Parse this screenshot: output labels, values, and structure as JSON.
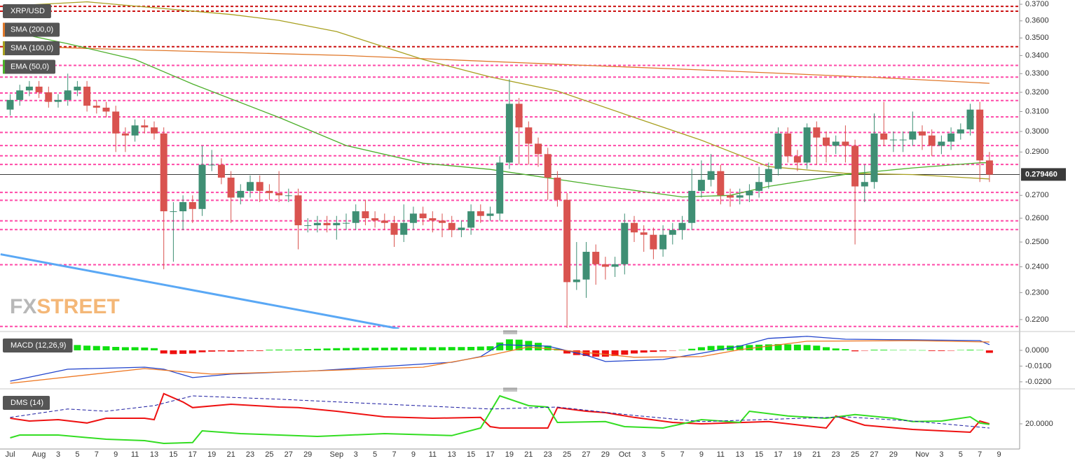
{
  "chart_data": [
    {
      "type": "candlestick",
      "title": "XRP/USD",
      "log_scale": true,
      "ylim": [
        0.2167,
        0.3726
      ],
      "yticks": [
        {
          "value": 0.37,
          "label": "0.3700"
        },
        {
          "value": 0.36,
          "label": "0.3600"
        },
        {
          "value": 0.35,
          "label": "0.3500"
        },
        {
          "value": 0.34,
          "label": "0.3400"
        },
        {
          "value": 0.33,
          "label": "0.3300"
        },
        {
          "value": 0.32,
          "label": "0.3200"
        },
        {
          "value": 0.31,
          "label": "0.3100"
        },
        {
          "value": 0.3,
          "label": "0.3000"
        },
        {
          "value": 0.29,
          "label": "0.2900"
        },
        {
          "value": 0.27,
          "label": "0.2700"
        },
        {
          "value": 0.26,
          "label": "0.2600"
        },
        {
          "value": 0.25,
          "label": "0.2500"
        },
        {
          "value": 0.24,
          "label": "0.2400"
        },
        {
          "value": 0.23,
          "label": "0.2300"
        },
        {
          "value": 0.22,
          "label": "0.2200"
        }
      ],
      "categories": [
        "Jul",
        null,
        null,
        "Aug",
        null,
        "3",
        null,
        "5",
        null,
        "7",
        null,
        "9",
        null,
        "11",
        null,
        "13",
        null,
        "15",
        null,
        "17",
        null,
        "19",
        null,
        "21",
        null,
        "23",
        null,
        "25",
        null,
        "27",
        null,
        "29",
        null,
        null,
        "Sep",
        null,
        "3",
        null,
        "5",
        null,
        "7",
        null,
        "9",
        null,
        "11",
        null,
        "13",
        null,
        "15",
        null,
        "17",
        null,
        "19",
        null,
        "21",
        null,
        "23",
        null,
        "25",
        null,
        "27",
        null,
        "29",
        null,
        "Oct",
        null,
        "3",
        null,
        "5",
        null,
        "7",
        null,
        "9",
        null,
        "11",
        null,
        "13",
        null,
        "15",
        null,
        "17",
        null,
        "19",
        null,
        "21",
        null,
        "23",
        null,
        "25",
        null,
        "27",
        null,
        "29",
        null,
        null,
        "Nov",
        null,
        "3",
        null,
        "5",
        null,
        "7",
        null,
        "9"
      ],
      "up_color": "#3f8f74",
      "down_color": "#d9534f",
      "open": [
        0.311,
        0.316,
        0.321,
        0.323,
        0.32,
        0.315,
        0.316,
        0.321,
        0.323,
        0.313,
        0.312,
        0.31,
        0.299,
        0.298,
        0.303,
        0.302,
        0.299,
        0.263,
        0.263,
        0.267,
        0.264,
        0.284,
        0.284,
        0.278,
        0.269,
        0.272,
        0.276,
        0.272,
        0.271,
        0.27,
        0.27,
        0.257,
        0.257,
        0.258,
        0.257,
        0.258,
        0.258,
        0.263,
        0.26,
        0.259,
        0.258,
        0.253,
        0.258,
        0.262,
        0.26,
        0.259,
        0.258,
        0.255,
        0.256,
        0.263,
        0.261,
        0.262,
        0.285,
        0.314,
        0.302,
        0.294,
        0.289,
        0.278,
        0.268,
        0.234,
        0.235,
        0.246,
        0.241,
        0.24,
        0.241,
        0.258,
        0.254,
        0.253,
        0.247,
        0.253,
        0.255,
        0.258,
        0.272,
        0.277,
        0.281,
        0.27,
        0.269,
        0.27,
        0.272,
        0.276,
        0.282,
        0.299,
        0.288,
        0.285,
        0.302,
        0.297,
        0.293,
        0.295,
        0.293,
        0.274,
        0.276,
        0.299,
        0.296,
        0.296,
        0.296,
        0.3,
        0.298,
        0.293,
        0.295,
        0.299,
        0.301,
        0.311,
        0.286,
        null
      ],
      "high": [
        0.319,
        0.324,
        0.326,
        0.326,
        0.323,
        0.319,
        0.33,
        0.326,
        0.326,
        0.316,
        0.315,
        0.313,
        0.302,
        0.306,
        0.306,
        0.305,
        0.302,
        0.267,
        0.27,
        0.27,
        0.293,
        0.291,
        0.287,
        0.281,
        0.275,
        0.279,
        0.279,
        0.275,
        0.281,
        0.273,
        0.273,
        0.26,
        0.261,
        0.261,
        0.261,
        0.262,
        0.266,
        0.268,
        0.263,
        0.262,
        0.261,
        0.266,
        0.265,
        0.265,
        0.263,
        0.262,
        0.261,
        0.259,
        0.266,
        0.266,
        0.265,
        0.288,
        0.327,
        0.317,
        0.305,
        0.297,
        0.292,
        0.281,
        0.271,
        0.25,
        0.25,
        0.249,
        0.244,
        0.244,
        0.262,
        0.261,
        0.257,
        0.256,
        0.257,
        0.258,
        0.261,
        0.282,
        0.286,
        0.289,
        0.284,
        0.273,
        0.273,
        0.275,
        0.283,
        0.285,
        0.302,
        0.302,
        0.291,
        0.304,
        0.305,
        0.3,
        0.298,
        0.303,
        0.296,
        0.284,
        0.309,
        0.315,
        0.3,
        0.3,
        0.31,
        0.303,
        0.301,
        0.298,
        0.302,
        0.304,
        0.314,
        0.315,
        0.29,
        null
      ],
      "low": [
        0.308,
        0.313,
        0.318,
        0.317,
        0.312,
        0.312,
        0.313,
        0.318,
        0.31,
        0.309,
        0.307,
        0.29,
        0.29,
        0.295,
        0.299,
        0.296,
        0.239,
        0.242,
        0.255,
        0.258,
        0.261,
        0.281,
        0.275,
        0.258,
        0.266,
        0.269,
        0.267,
        0.268,
        0.267,
        0.267,
        0.247,
        0.254,
        0.254,
        0.254,
        0.251,
        0.255,
        0.255,
        0.257,
        0.256,
        0.255,
        0.248,
        0.25,
        0.255,
        0.257,
        0.254,
        0.252,
        0.252,
        0.252,
        0.253,
        0.258,
        0.259,
        0.259,
        0.282,
        0.284,
        0.284,
        0.283,
        0.268,
        0.265,
        0.217,
        0.231,
        0.228,
        0.233,
        0.235,
        0.236,
        0.237,
        0.25,
        0.246,
        0.243,
        0.244,
        0.249,
        0.251,
        0.255,
        0.269,
        0.274,
        0.266,
        0.265,
        0.266,
        0.267,
        0.269,
        0.273,
        0.279,
        0.285,
        0.281,
        0.282,
        0.284,
        0.285,
        0.289,
        0.285,
        0.249,
        0.267,
        0.273,
        0.293,
        0.29,
        0.29,
        0.293,
        0.291,
        0.288,
        0.289,
        0.291,
        0.296,
        0.298,
        0.276,
        0.276,
        null
      ],
      "close": [
        0.316,
        0.321,
        0.323,
        0.32,
        0.315,
        0.316,
        0.321,
        0.323,
        0.313,
        0.312,
        0.31,
        0.299,
        0.298,
        0.303,
        0.302,
        0.299,
        0.263,
        0.263,
        0.267,
        0.264,
        0.284,
        0.284,
        0.278,
        0.269,
        0.272,
        0.276,
        0.272,
        0.271,
        0.27,
        0.27,
        0.257,
        0.257,
        0.258,
        0.257,
        0.258,
        0.258,
        0.263,
        0.26,
        0.259,
        0.258,
        0.253,
        0.258,
        0.262,
        0.26,
        0.259,
        0.258,
        0.255,
        0.256,
        0.263,
        0.261,
        0.262,
        0.285,
        0.314,
        0.302,
        0.294,
        0.289,
        0.278,
        0.268,
        0.234,
        0.235,
        0.246,
        0.241,
        0.24,
        0.241,
        0.258,
        0.254,
        0.253,
        0.247,
        0.253,
        0.255,
        0.258,
        0.272,
        0.277,
        0.281,
        0.27,
        0.269,
        0.27,
        0.272,
        0.276,
        0.282,
        0.299,
        0.288,
        0.285,
        0.302,
        0.297,
        0.293,
        0.295,
        0.293,
        0.274,
        0.276,
        0.299,
        0.296,
        0.296,
        0.296,
        0.3,
        0.298,
        0.293,
        0.295,
        0.299,
        0.301,
        0.311,
        0.286,
        0.2794,
        null
      ],
      "levels": [
        0.3345,
        0.3281,
        0.3196,
        0.3157,
        0.3073,
        0.2995,
        0.2931,
        0.2882,
        0.2841,
        0.2713,
        0.2678,
        0.2589,
        0.2552,
        0.2408,
        0.2175
      ],
      "level_color": "#ff4aa8",
      "major_levels": [
        0.3687,
        0.3658,
        0.345
      ],
      "major_level_color": "#cc1111",
      "last_price": 0.27946,
      "last_price_label": "0.279460",
      "last_price_color": "#3a3a3a",
      "overlays": [
        {
          "name": "SMA (200,0)",
          "color": "#e0782a",
          "x": [
            0,
            8,
            35,
            60,
            72,
            90,
            102
          ],
          "values": [
            0.3455,
            0.344,
            0.34,
            0.3345,
            0.332,
            0.328,
            0.3248
          ]
        },
        {
          "name": "SMA (100,0)",
          "color": "#a8a020",
          "x": [
            0,
            8,
            23,
            28,
            34,
            43,
            50,
            57,
            65,
            72,
            79,
            87,
            94,
            102
          ],
          "values": [
            0.369,
            0.3715,
            0.3638,
            0.3603,
            0.3537,
            0.3378,
            0.3282,
            0.3207,
            0.307,
            0.2957,
            0.2831,
            0.28,
            0.2794,
            0.2774
          ]
        },
        {
          "name": "EMA (50,0)",
          "color": "#4caf2a",
          "x": [
            0,
            6,
            13,
            19,
            28,
            35,
            43,
            50,
            62,
            70,
            75,
            79,
            87,
            94,
            101,
            102
          ],
          "values": [
            0.3537,
            0.3467,
            0.3378,
            0.3244,
            0.307,
            0.2931,
            0.2847,
            0.2818,
            0.274,
            0.2693,
            0.27,
            0.274,
            0.2795,
            0.2825,
            0.2849,
            0.2849
          ]
        }
      ],
      "trendline": {
        "color": "#5aa8f5",
        "x": [
          -1,
          40.5
        ],
        "values": [
          0.245,
          0.2167
        ]
      },
      "watermark": [
        "FX",
        "STREET"
      ]
    },
    {
      "type": "macd",
      "title": "MACD (12,26,9)",
      "ylim": [
        -0.0227,
        0.0102
      ],
      "yticks": [
        {
          "value": 0,
          "label": "0.0000"
        },
        {
          "value": -0.01,
          "label": "-0.0100"
        },
        {
          "value": -0.02,
          "label": "-0.0200"
        }
      ],
      "histogram": {
        "up_color": "#11e011",
        "down_color": "#ee1111",
        "values": [
          0.003,
          0.0032,
          0.0034,
          0.0034,
          0.0032,
          0.003,
          0.0032,
          0.0034,
          0.003,
          0.0028,
          0.0026,
          0.0022,
          0.002,
          0.002,
          0.0018,
          0.0014,
          -0.002,
          -0.0024,
          -0.0022,
          -0.002,
          -0.0012,
          -0.0008,
          -0.0006,
          -0.0008,
          -0.0006,
          -0.0004,
          -0.0004,
          0.0004,
          0.0005,
          0.0004,
          0.0006,
          0.0008,
          0.001,
          0.0012,
          0.0014,
          0.0015,
          0.0016,
          0.0016,
          0.0017,
          0.0017,
          0.0018,
          0.0018,
          0.0019,
          0.002,
          0.002,
          0.002,
          0.0021,
          0.0021,
          0.0022,
          0.0024,
          0.0026,
          0.005,
          0.007,
          0.0068,
          0.006,
          0.0048,
          0.003,
          0.001,
          -0.002,
          -0.003,
          -0.0036,
          -0.004,
          -0.004,
          -0.0036,
          -0.0028,
          -0.002,
          -0.0014,
          -0.001,
          -0.0006,
          -0.0002,
          0.0002,
          0.001,
          0.002,
          0.0028,
          0.003,
          0.003,
          0.0032,
          0.0034,
          0.0036,
          0.0038,
          0.004,
          0.0038,
          0.0036,
          0.0034,
          0.003,
          0.002,
          0.0012,
          0.0008,
          -0.0006,
          -0.0002,
          0.0004,
          0.0004,
          0.0002,
          0.0002,
          0.0002,
          0.0001,
          -0.0004,
          -0.0004,
          -0.0002,
          0.0002,
          0.0004,
          0.0002,
          -0.0016,
          null
        ]
      },
      "series": [
        {
          "color": "#2244cc",
          "x": [
            0,
            6,
            14,
            16,
            19,
            23,
            32,
            39,
            46,
            49,
            51,
            56,
            60,
            62,
            68,
            72,
            76,
            79,
            83,
            87,
            94,
            101,
            102
          ],
          "values": [
            -0.0196,
            -0.012,
            -0.0107,
            -0.012,
            -0.0173,
            -0.0151,
            -0.0129,
            -0.0102,
            -0.0076,
            -0.004,
            0.0036,
            0.0027,
            -0.0031,
            -0.0071,
            -0.0058,
            -0.0018,
            0.0027,
            0.0076,
            0.0089,
            0.0071,
            0.0067,
            0.0062,
            0.0036
          ]
        },
        {
          "color": "#ee7722",
          "x": [
            0,
            14,
            21,
            28,
            43,
            50,
            54,
            57,
            65,
            72,
            76,
            83,
            94,
            102
          ],
          "values": [
            -0.0209,
            -0.0116,
            -0.0151,
            -0.0138,
            -0.0107,
            -0.0031,
            0.0022,
            0.0004,
            -0.0044,
            -0.004,
            0.0004,
            0.0058,
            0.0062,
            0.0053
          ]
        }
      ]
    },
    {
      "type": "line",
      "title": "DMS (14)",
      "ylim": [
        11.5,
        31.5
      ],
      "yticks": [
        {
          "value": 20,
          "label": "20.0000"
        }
      ],
      "series": [
        {
          "color": "#ee1111",
          "dash": false,
          "x": [
            0,
            2,
            5,
            8,
            10,
            14,
            15,
            16,
            18,
            19,
            23,
            28,
            30,
            34,
            39,
            44,
            49,
            50,
            51,
            56,
            57,
            60,
            62,
            65,
            69,
            72,
            79,
            85,
            86,
            89,
            94,
            100,
            101,
            102
          ],
          "values": [
            22.0,
            21.0,
            21.5,
            20.3,
            22.0,
            22.0,
            21.5,
            30.8,
            27.8,
            25.8,
            27.0,
            26.0,
            25.8,
            24.5,
            22.5,
            22.0,
            22.3,
            19.0,
            18.5,
            18.5,
            25.8,
            24.5,
            24.0,
            22.3,
            20.5,
            20.0,
            20.8,
            18.5,
            22.8,
            19.5,
            18.0,
            17.0,
            21.0,
            20.0
          ]
        },
        {
          "color": "#33dd22",
          "dash": false,
          "x": [
            0,
            1,
            5,
            10,
            14,
            16,
            19,
            20,
            24,
            32,
            39,
            46,
            49,
            51,
            54,
            56,
            57,
            62,
            64,
            68,
            72,
            76,
            77,
            81,
            85,
            88,
            92,
            94,
            97,
            100,
            101,
            102
          ],
          "values": [
            15.0,
            16.0,
            16.0,
            14.5,
            14.0,
            13.0,
            13.3,
            17.5,
            16.5,
            15.5,
            16.5,
            15.8,
            18.5,
            30.0,
            26.5,
            26.0,
            20.5,
            20.8,
            19.0,
            18.5,
            21.5,
            20.5,
            24.5,
            22.8,
            22.0,
            23.3,
            22.0,
            20.8,
            21.0,
            22.5,
            20.3,
            19.8
          ]
        },
        {
          "color": "#1a1aa0",
          "dash": true,
          "x": [
            0,
            6,
            10,
            15,
            19,
            28,
            50,
            57,
            65,
            72,
            87,
            94,
            102
          ],
          "values": [
            22.3,
            25.3,
            24.5,
            26.5,
            30.0,
            28.8,
            25.3,
            26.0,
            23.0,
            20.8,
            22.5,
            21.0,
            18.5
          ]
        }
      ]
    }
  ]
}
